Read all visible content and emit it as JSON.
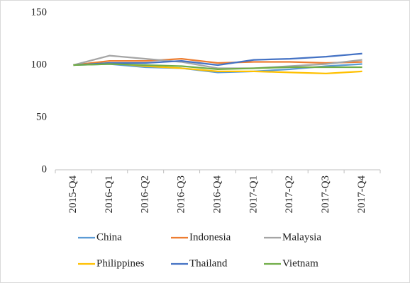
{
  "chart_data": {
    "type": "line",
    "categories": [
      "2015-Q4",
      "2016-Q1",
      "2016-Q2",
      "2016-Q3",
      "2016-Q4",
      "2017-Q1",
      "2017-Q2",
      "2017-Q3",
      "2017-Q4"
    ],
    "series": [
      {
        "name": "China",
        "color": "#5b9bd5",
        "values": [
          100,
          101,
          98,
          97,
          93,
          94,
          96,
          99,
          101
        ]
      },
      {
        "name": "Indonesia",
        "color": "#ed7d31",
        "values": [
          100,
          104,
          104,
          106,
          102,
          103,
          103,
          102,
          103
        ]
      },
      {
        "name": "Malaysia",
        "color": "#a5a5a5",
        "values": [
          100,
          109,
          106,
          103,
          97,
          97,
          99,
          101,
          105
        ]
      },
      {
        "name": "Philippines",
        "color": "#ffc000",
        "values": [
          100,
          102,
          99,
          97,
          94,
          94,
          93,
          92,
          94
        ]
      },
      {
        "name": "Thailand",
        "color": "#4472c4",
        "values": [
          100,
          102,
          102,
          104,
          100,
          105,
          106,
          108,
          111
        ]
      },
      {
        "name": "Vietnam",
        "color": "#70ad47",
        "values": [
          100,
          101,
          100,
          99,
          96,
          97,
          98,
          98,
          98
        ]
      }
    ],
    "ylim": [
      0,
      150
    ],
    "yticks": [
      0,
      50,
      100,
      150
    ],
    "grid": false,
    "legend": "bottom"
  }
}
